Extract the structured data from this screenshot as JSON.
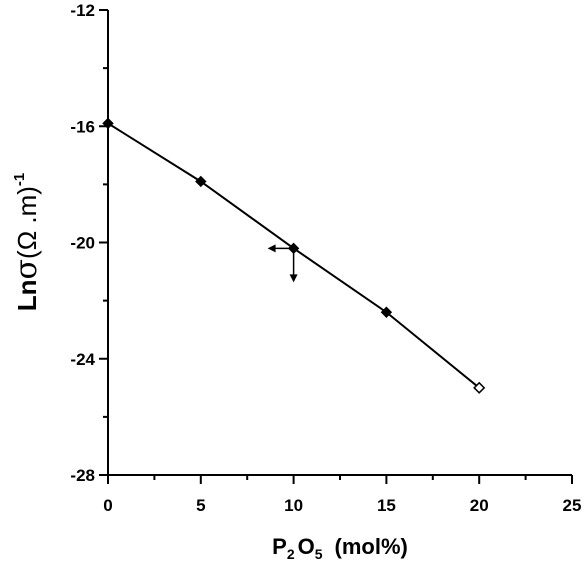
{
  "chart_data": {
    "type": "line",
    "x": [
      0,
      5,
      10,
      15,
      20
    ],
    "series": [
      {
        "values": [
          -15.9,
          -17.9,
          -20.2,
          -22.4,
          -25.0
        ],
        "marker": "diamond",
        "open_last_marker": true
      }
    ],
    "xlim": [
      0,
      25
    ],
    "ylim": [
      -28,
      -12
    ],
    "x_ticks": [
      0,
      5,
      10,
      15,
      20,
      25
    ],
    "y_ticks": [
      -28,
      -24,
      -20,
      -16,
      -12
    ],
    "x_tick_labels": [
      "0",
      "5",
      "10",
      "15",
      "20",
      "25"
    ],
    "y_tick_labels": [
      "-28",
      "-24",
      "-20",
      "-16",
      "-12"
    ],
    "xlabel": {
      "p": "P",
      "sub1": "2",
      "o": "O",
      "sub2": "5",
      "rest": "(mol%)"
    },
    "ylabel": {
      "main": "Ln",
      "sigma": "σ",
      "paren": "(Ω .m)",
      "sup": "-1"
    },
    "grid": false,
    "legend": "none",
    "colors": {
      "line": "#000000",
      "axis": "#000000",
      "background": "#ffffff"
    },
    "annotation": {
      "type": "axis-arrows",
      "at_x": 10,
      "at_y": -20.2,
      "directions": [
        "left",
        "down"
      ]
    }
  }
}
